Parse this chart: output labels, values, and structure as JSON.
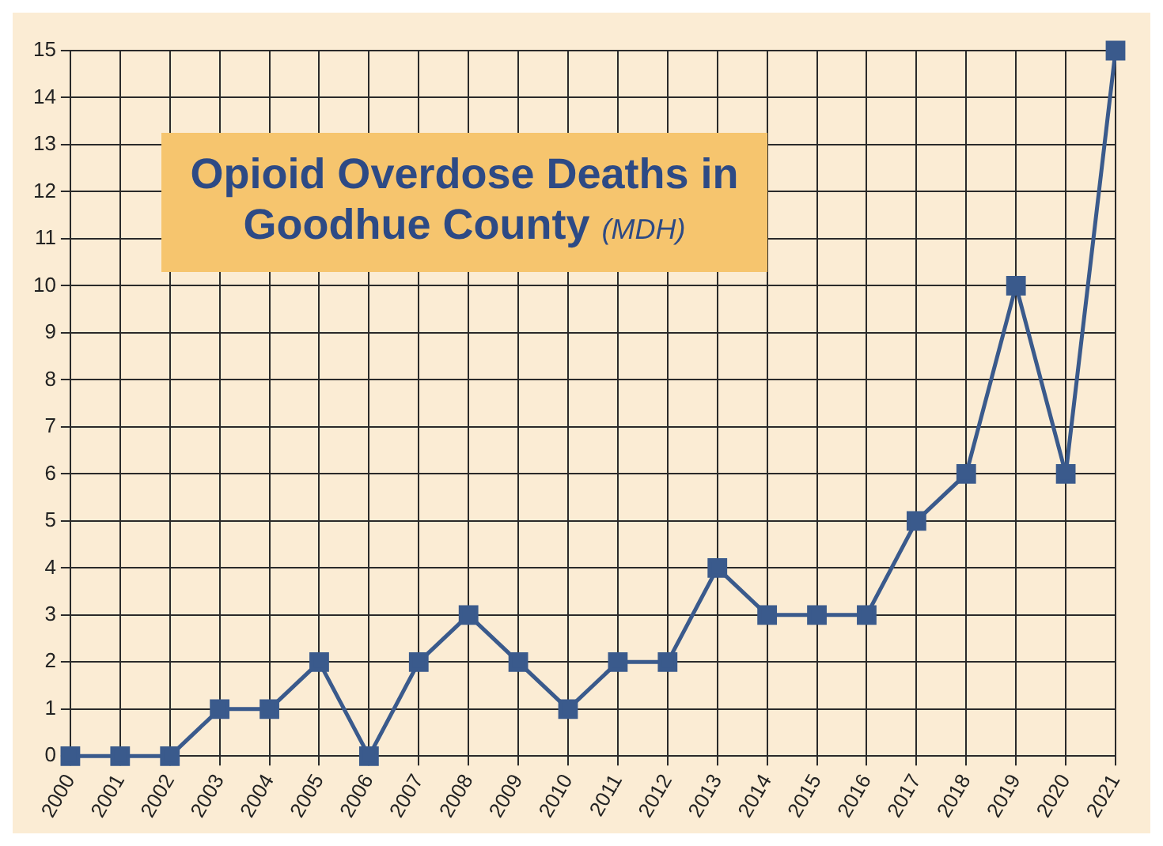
{
  "chart_data": {
    "type": "line",
    "title": "Opioid Overdose Deaths in Goodhue County",
    "subtitle": "(MDH)",
    "categories": [
      "2000",
      "2001",
      "2002",
      "2003",
      "2004",
      "2005",
      "2006",
      "2007",
      "2008",
      "2009",
      "2010",
      "2011",
      "2012",
      "2013",
      "2014",
      "2015",
      "2016",
      "2017",
      "2018",
      "2019",
      "2020",
      "2021"
    ],
    "series": [
      {
        "color": "#3a5a8c",
        "values": [
          0,
          0,
          0,
          1,
          1,
          2,
          0,
          2,
          3,
          2,
          1,
          2,
          2,
          4,
          3,
          3,
          3,
          5,
          6,
          10,
          6,
          15
        ]
      }
    ],
    "ylim": [
      0,
      15
    ],
    "yticks": [
      0,
      1,
      2,
      3,
      4,
      5,
      6,
      7,
      8,
      9,
      10,
      11,
      12,
      13,
      14,
      15
    ],
    "grid": true,
    "marker": "square",
    "line_style": "solid"
  }
}
